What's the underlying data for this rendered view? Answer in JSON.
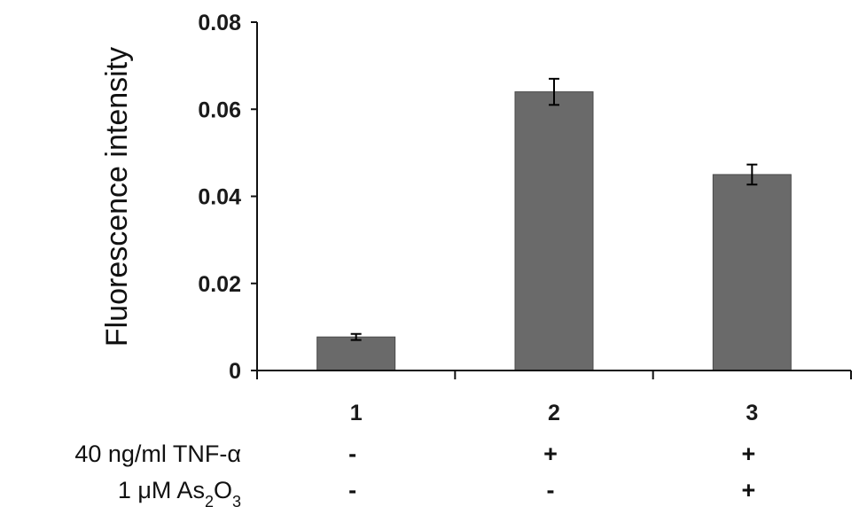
{
  "chart_data": {
    "type": "bar",
    "ylabel": "Fluorescence intensity",
    "xlabel": "",
    "ylim": [
      0,
      0.08
    ],
    "yticks": [
      "0",
      "0.02",
      "0.04",
      "0.06",
      "0.08"
    ],
    "categories": [
      "1",
      "2",
      "3"
    ],
    "values": [
      0.0077,
      0.064,
      0.045
    ],
    "errors": [
      0.0007,
      0.003,
      0.0023
    ],
    "grid": false,
    "bar_color": "#6a6a6a",
    "treatments": [
      {
        "label_main": "40 ng/ml TNF-α",
        "label_sub": "",
        "label_tail": "",
        "marks": [
          "-",
          "+",
          "+"
        ]
      },
      {
        "label_main": "1 μM As",
        "label_sub": "2",
        "label_tail": "O",
        "label_sub2": "3",
        "marks": [
          "-",
          "-",
          "+"
        ]
      }
    ]
  }
}
